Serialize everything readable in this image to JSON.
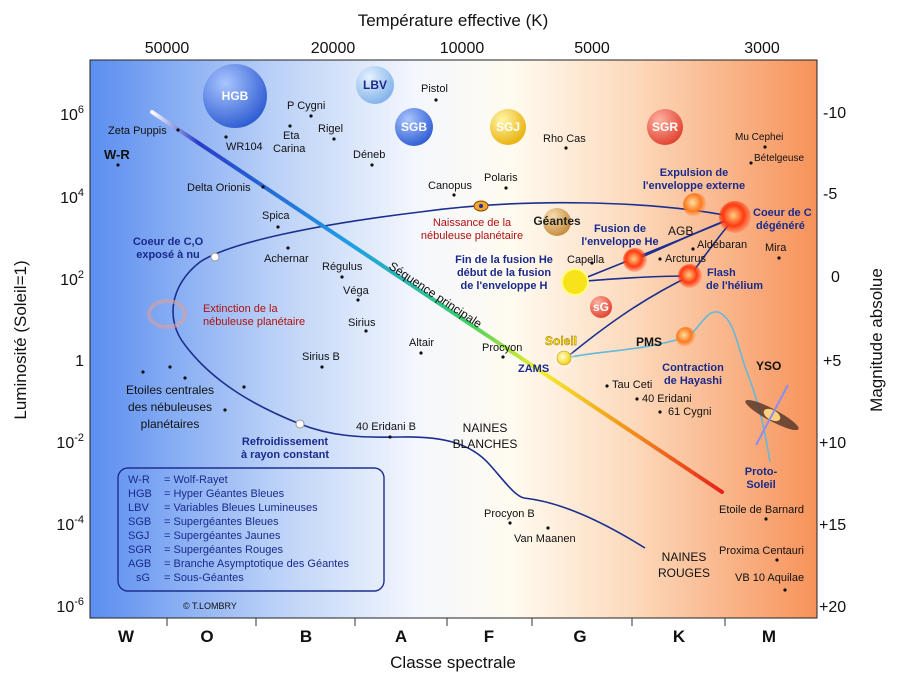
{
  "axes": {
    "top_title": "Température effective (K)",
    "bottom_title": "Classe spectrale",
    "left_title": "Luminosité (Soleil=1)",
    "right_title": "Magnitude absolue",
    "temperature_ticks": [
      "50000",
      "20000",
      "10000",
      "5000",
      "3000"
    ],
    "spectral_classes": [
      "W",
      "O",
      "B",
      "A",
      "F",
      "G",
      "K",
      "M"
    ],
    "luminosity_ticks": [
      {
        "base": "10",
        "exp": "6"
      },
      {
        "base": "10",
        "exp": "4"
      },
      {
        "base": "10",
        "exp": "2"
      },
      {
        "base": "1",
        "exp": ""
      },
      {
        "base": "10",
        "exp": "-2"
      },
      {
        "base": "10",
        "exp": "-4"
      },
      {
        "base": "10",
        "exp": "-6"
      }
    ],
    "magnitude_ticks": [
      "-10",
      "-5",
      "0",
      "+5",
      "+10",
      "+15",
      "+20"
    ]
  },
  "stars": {
    "zeta_puppis": "Zeta Puppis",
    "wr": "W-R",
    "wr104": "WR104",
    "p_cygni": "P Cygni",
    "eta_carina_1": "Eta",
    "eta_carina_2": "Carina",
    "rigel": "Rigel",
    "pistol": "Pistol",
    "deneb": "Déneb",
    "rho_cas": "Rho Cas",
    "mu_cephei": "Mu Cephei",
    "betelgeuse": "Bételgeuse",
    "delta_orionis": "Delta Orionis",
    "canopus": "Canopus",
    "polaris": "Polaris",
    "spica": "Spica",
    "achernar": "Achernar",
    "regulus": "Régulus",
    "vega": "Véga",
    "sirius": "Sirius",
    "sirius_b": "Sirius B",
    "altair": "Altair",
    "procyon": "Procyon",
    "capella": "Capella",
    "arcturus": "Arcturus",
    "aldebaran": "Aldébaran",
    "mira": "Mira",
    "tau_ceti": "Tau Ceti",
    "eridani_40": "40 Eridani",
    "cygni_61": "61 Cygni",
    "eridani_40b": "40 Eridani B",
    "procyon_b": "Procyon B",
    "van_maanen": "Van Maanen",
    "barnard": "Etoile de Barnard",
    "proxima": "Proxima Centauri",
    "vb10": "VB 10 Aquilae",
    "soleil": "Soleil"
  },
  "bubbles": {
    "hgb": "HGB",
    "lbv": "LBV",
    "sgb": "SGB",
    "sgj": "SGJ",
    "sgr": "SGR",
    "geantes": "Géantes",
    "sg": "sG"
  },
  "annotations": {
    "main_sequence": "Séquence principale",
    "coeur_co_1": "Coeur de C,O",
    "coeur_co_2": "exposé à nu",
    "extinction_1": "Extinction de la",
    "extinction_2": "nébuleuse planétaire",
    "naissance_1": "Naissance de la",
    "naissance_2": "nébuleuse planétaire",
    "expulsion_1": "Expulsion de",
    "expulsion_2": "l'enveloppe externe",
    "coeur_c_1": "Coeur de C",
    "coeur_c_2": "dégénéré",
    "fusion_env_1": "Fusion de",
    "fusion_env_2": "l'enveloppe He",
    "agb": "AGB",
    "fin_fusion_1": "Fin de la fusion He",
    "fin_fusion_2": "début de la fusion",
    "fin_fusion_3": "de l'enveloppe H",
    "flash_1": "Flash",
    "flash_2": "de l'hélium",
    "pms": "PMS",
    "zams": "ZAMS",
    "contraction_1": "Contraction",
    "contraction_2": "de Hayashi",
    "yso": "YSO",
    "proto_1": "Proto-",
    "proto_2": "Soleil",
    "etoiles_centrales_1": "Etoiles centrales",
    "etoiles_centrales_2": "des nébuleuses",
    "etoiles_centrales_3": "planétaires",
    "refroidissement_1": "Refroidissement",
    "refroidissement_2": "à rayon constant",
    "naines_blanches_1": "NAINES",
    "naines_blanches_2": "BLANCHES",
    "naines_rouges_1": "NAINES",
    "naines_rouges_2": "ROUGES",
    "copyright": "© T.LOMBRY"
  },
  "legend": [
    {
      "abbr": "W-R",
      "text": "= Wolf-Rayet"
    },
    {
      "abbr": "HGB",
      "text": "= Hyper Géantes Bleues"
    },
    {
      "abbr": "LBV",
      "text": "= Variables Bleues Lumineuses"
    },
    {
      "abbr": "SGB",
      "text": "= Supergéantes Bleues"
    },
    {
      "abbr": "SGJ",
      "text": "= Supergéantes Jaunes"
    },
    {
      "abbr": "SGR",
      "text": "= Supergéantes Rouges"
    },
    {
      "abbr": "AGB",
      "text": "= Branche Asymptotique des Géantes"
    },
    {
      "abbr": "sG",
      "text": "= Sous-Géantes"
    }
  ],
  "colors": {
    "hot_blue": "#5b8ef0",
    "cool_orange": "#f79a5a",
    "track_blue": "#1c2f8f",
    "track_cyan": "#63b9dc",
    "red_text": "#b01010"
  }
}
